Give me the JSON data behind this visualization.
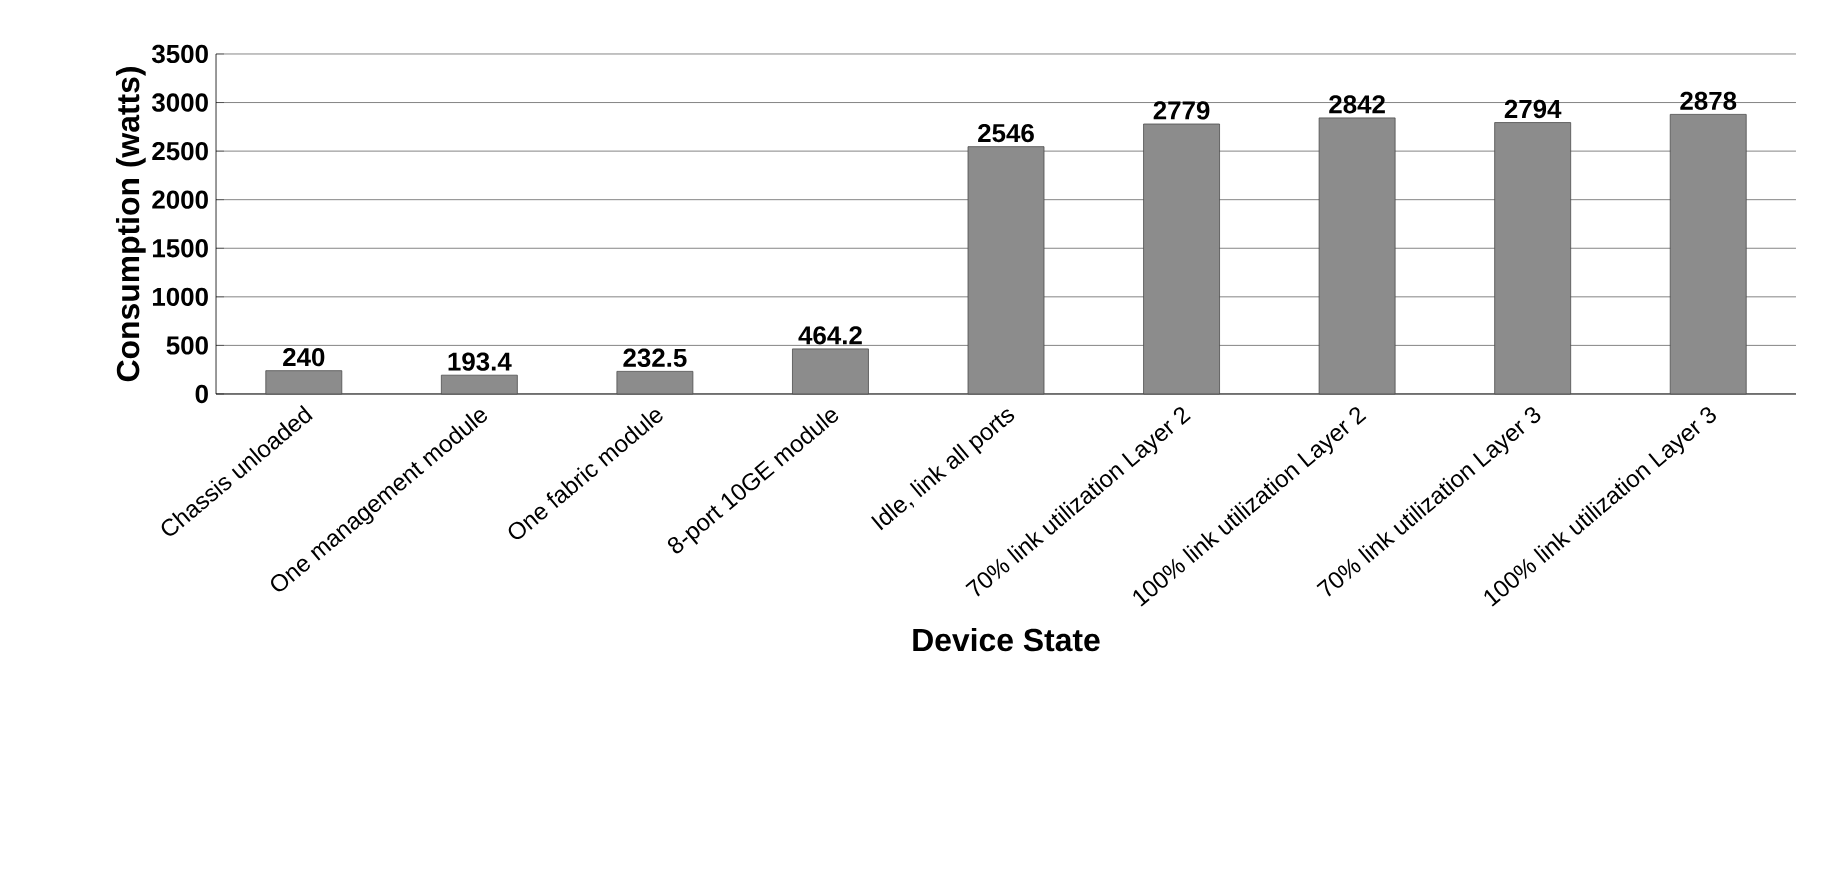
{
  "chart_data": {
    "type": "bar",
    "xlabel": "Device State",
    "ylabel": "Consumption (watts)",
    "categories": [
      "Chassis unloaded",
      "One management module",
      "One fabric module",
      "8-port 10GE module",
      "Idle, link all ports",
      "70% link utilization Layer 2",
      "100% link utilization Layer 2",
      "70% link utilization Layer 3",
      "100% link utilization Layer 3"
    ],
    "values": [
      240,
      193.4,
      232.5,
      464.2,
      2546,
      2779,
      2842,
      2794,
      2878
    ],
    "color": "#8c8c8c",
    "ylim": [
      0,
      3500
    ],
    "yticks": [
      0,
      500,
      1000,
      1500,
      2000,
      2500,
      3000,
      3500
    ],
    "grid": "y",
    "data_labels": true
  }
}
